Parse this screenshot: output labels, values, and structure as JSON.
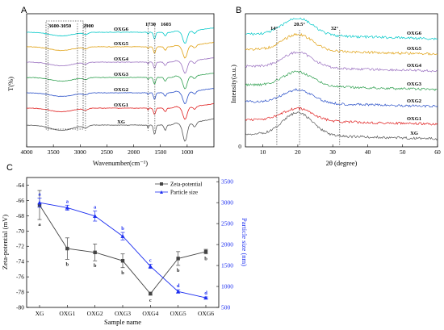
{
  "chart_data": [
    {
      "panel": "A",
      "type": "line",
      "xlabel": "Wavenumber(cm⁻¹)",
      "ylabel": "T(%)",
      "xlim": [
        4000,
        500
      ],
      "xticks": [
        4000,
        3500,
        3000,
        2500,
        2000,
        1500,
        1000
      ],
      "annotations": [
        "3600-3050",
        "2900",
        "1730",
        "1603"
      ],
      "series": [
        {
          "name": "OXG6",
          "color": "#00c8c8"
        },
        {
          "name": "OXG5",
          "color": "#e0a010"
        },
        {
          "name": "OXG4",
          "color": "#9a70c0"
        },
        {
          "name": "OXG3",
          "color": "#30a050"
        },
        {
          "name": "OXG2",
          "color": "#2a50c8"
        },
        {
          "name": "OXG1",
          "color": "#e02020"
        },
        {
          "name": "XG",
          "color": "#555555"
        }
      ]
    },
    {
      "panel": "B",
      "type": "line",
      "xlabel": "2θ (degree)",
      "ylabel": "Intensity(a.u.)",
      "xlim": [
        5,
        60
      ],
      "xticks": [
        10,
        20,
        30,
        40,
        50,
        60
      ],
      "yticks": [
        0
      ],
      "annotations": [
        "14°",
        "20.5°",
        "32°"
      ],
      "series": [
        {
          "name": "OXG6",
          "color": "#00c8c8"
        },
        {
          "name": "OXG5",
          "color": "#e0a010"
        },
        {
          "name": "OXG4",
          "color": "#9a70c0"
        },
        {
          "name": "OXG3",
          "color": "#30a050"
        },
        {
          "name": "OXG2",
          "color": "#2a50c8"
        },
        {
          "name": "OXG1",
          "color": "#e02020"
        },
        {
          "name": "XG",
          "color": "#555555"
        }
      ]
    },
    {
      "panel": "C",
      "type": "line",
      "xlabel": "Sample name",
      "ylabel": "Zeta-potential (mV)",
      "y2label": "Particle size (nm)",
      "categories": [
        "XG",
        "OXG1",
        "OXG2",
        "OXG3",
        "OXG4",
        "OXG5",
        "OXG6"
      ],
      "ylim": [
        -80,
        -63
      ],
      "yticks": [
        -80,
        -78,
        -76,
        -74,
        -72,
        -70,
        -68,
        -66,
        -64
      ],
      "y2lim": [
        500,
        3600
      ],
      "y2ticks": [
        500,
        1000,
        1500,
        2000,
        2500,
        3000,
        3500
      ],
      "legend": "top-right",
      "series": [
        {
          "name": "Zeta-potential",
          "color": "#444444",
          "axis": "left",
          "values": [
            -66.6,
            -72.3,
            -72.8,
            -73.9,
            -78.2,
            -73.6,
            -72.7
          ],
          "errors": [
            1.9,
            1.4,
            1.1,
            0.9,
            0.2,
            0.9,
            0.3
          ],
          "letters": [
            "a",
            "b",
            "b",
            "b",
            "c",
            "b",
            "b"
          ]
        },
        {
          "name": "Particle size",
          "color": "#1a2cf0",
          "axis": "right",
          "values": [
            3000,
            2880,
            2680,
            2200,
            1480,
            880,
            730
          ],
          "errors": [
            110,
            60,
            120,
            90,
            50,
            40,
            20
          ],
          "letters": [
            "a",
            "a",
            "a",
            "b",
            "c",
            "d",
            "d"
          ]
        }
      ]
    }
  ]
}
